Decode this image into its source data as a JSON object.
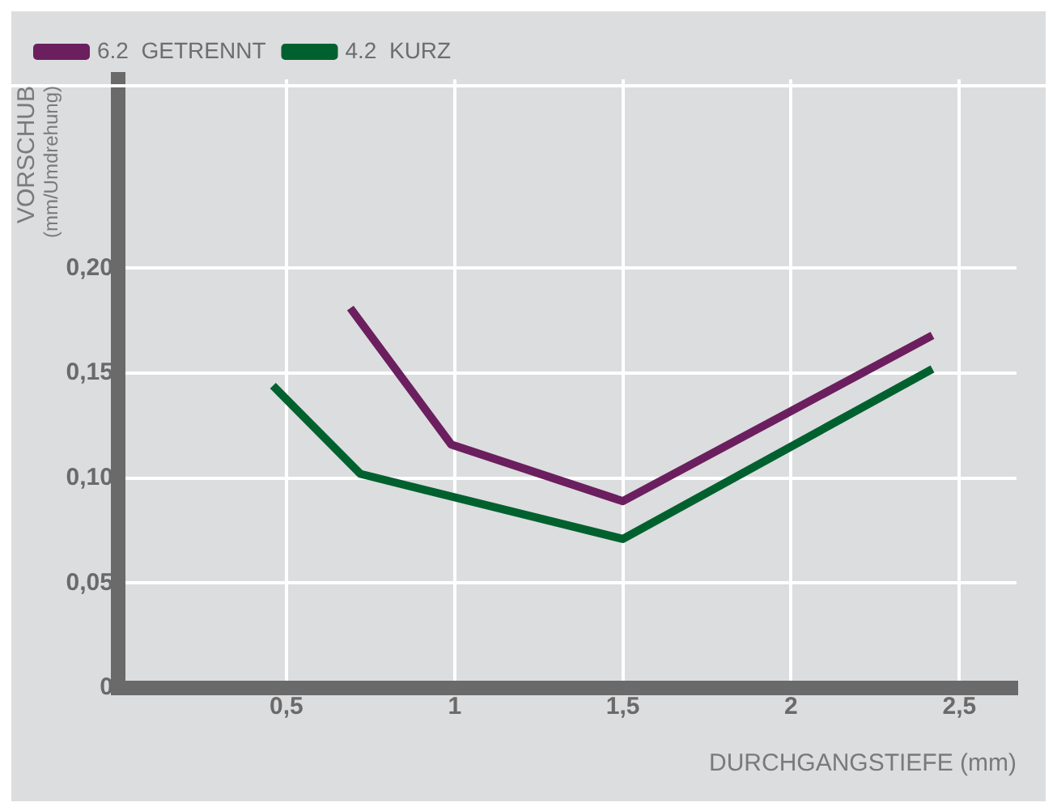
{
  "chart_data": {
    "type": "line",
    "xlabel": "DURCHGANGSTIEFE (mm)",
    "ylabel": "VORSCHUB\n(mm/Umdrehung)",
    "series": [
      {
        "name": "6.2  GETRENNT",
        "color": "#6b1f5e",
        "x": [
          0.69,
          0.99,
          1.5,
          2.42
        ],
        "values": [
          0.181,
          0.116,
          0.089,
          0.168
        ]
      },
      {
        "name": "4.2  KURZ",
        "color": "#00612f",
        "x": [
          0.46,
          0.72,
          1.5,
          2.42
        ],
        "values": [
          0.144,
          0.102,
          0.071,
          0.152
        ]
      }
    ],
    "xlim": [
      0,
      2.67
    ],
    "xticks": [
      {
        "value": 0.5,
        "label": "0,5"
      },
      1,
      {
        "value": 1.5,
        "label": "1,5"
      },
      2,
      {
        "value": 2.5,
        "label": "2,5"
      }
    ],
    "ylim": [
      0,
      0.29
    ],
    "yticks": [
      0,
      {
        "value": 0.05,
        "label": "0,05"
      },
      {
        "value": 0.1,
        "label": "0,10"
      },
      {
        "value": 0.15,
        "label": "0,15"
      },
      {
        "value": 0.2,
        "label": "0,20"
      }
    ],
    "grid": true,
    "legend": "top left",
    "marker": "none",
    "line_style": "solid"
  }
}
